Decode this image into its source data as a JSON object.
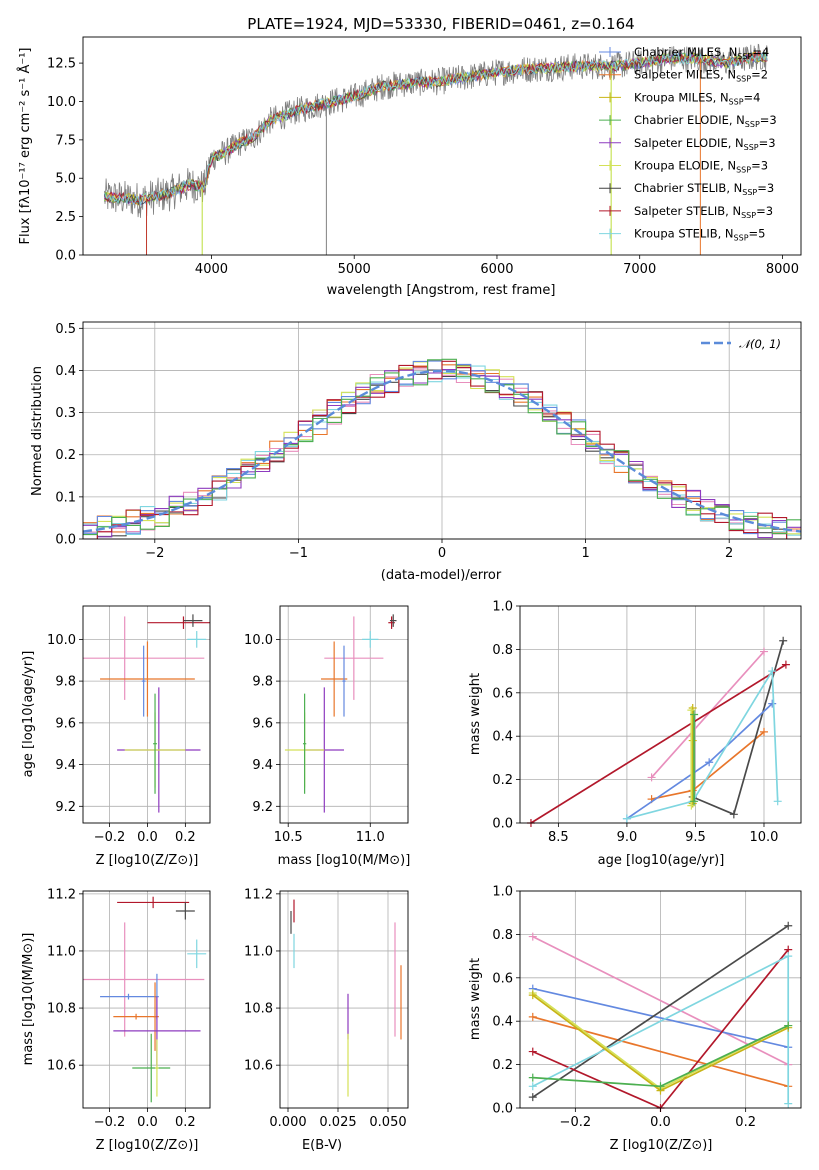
{
  "chart_data": [
    {
      "id": "spectrum",
      "type": "line",
      "title": "PLATE=1924, MJD=53330, FIBERID=0461, z=0.164",
      "xlabel": "wavelength [Angstrom, rest frame]",
      "ylabel": "Flux [fλ10⁻¹⁷ erg cm⁻² s⁻¹ Å⁻¹]",
      "xlim": [
        3100,
        8130
      ],
      "ylim": [
        0,
        14.2
      ],
      "xticks": [
        4000,
        5000,
        6000,
        7000,
        8000
      ],
      "yticks": [
        0.0,
        2.5,
        5.0,
        7.5,
        10.0,
        12.5
      ],
      "ytick_labels": [
        "0.0",
        "2.5",
        "5.0",
        "7.5",
        "10.0",
        "12.5"
      ],
      "continuum": {
        "x": [
          3250,
          3500,
          3700,
          3850,
          3950,
          4000,
          4100,
          4200,
          4300,
          4400,
          4600,
          4800,
          5000,
          5200,
          5400,
          5600,
          5800,
          6000,
          6200,
          6400,
          6600,
          6800,
          7000,
          7200,
          7400,
          7600,
          7800,
          7900
        ],
        "y": [
          3.8,
          3.6,
          4.0,
          4.6,
          4.4,
          6.3,
          6.7,
          7.3,
          7.7,
          8.7,
          9.4,
          9.9,
          10.3,
          11.0,
          11.2,
          11.3,
          11.6,
          11.9,
          12.1,
          12.2,
          12.3,
          12.3,
          12.5,
          12.8,
          12.8,
          12.5,
          12.9,
          12.9
        ]
      },
      "vlines": [
        {
          "x": 3545,
          "color": "#c0392b"
        },
        {
          "x": 3935,
          "color": "#bcdd3a"
        },
        {
          "x": 4805,
          "color": "#808080"
        },
        {
          "x": 6800,
          "color": "#bcdd3a"
        },
        {
          "x": 7425,
          "color": "#e8762b"
        }
      ],
      "legend_position": "upper right",
      "series": [
        {
          "name": "Chabrier MILES, N",
          "sub": "SSP",
          "value": "=4",
          "color": "#6389e0"
        },
        {
          "name": "Salpeter MILES, N",
          "sub": "SSP",
          "value": "=2",
          "color": "#e8762b"
        },
        {
          "name": "Kroupa MILES, N",
          "sub": "SSP",
          "value": "=4",
          "color": "#c8b415"
        },
        {
          "name": "Chabrier ELODIE, N",
          "sub": "SSP",
          "value": "=3",
          "color": "#4caf50"
        },
        {
          "name": "Salpeter ELODIE, N",
          "sub": "SSP",
          "value": "=3",
          "color": "#8e3bbf"
        },
        {
          "name": "Kroupa ELODIE, N",
          "sub": "SSP",
          "value": "=3",
          "color": "#d4e157"
        },
        {
          "name": "Chabrier STELIB, N",
          "sub": "SSP",
          "value": "=3",
          "color": "#404040"
        },
        {
          "name": "Salpeter STELIB, N",
          "sub": "SSP",
          "value": "=3",
          "color": "#b2182b"
        },
        {
          "name": "Kroupa STELIB, N",
          "sub": "SSP",
          "value": "=5",
          "color": "#7fd6e0"
        }
      ]
    },
    {
      "id": "residuals",
      "type": "line",
      "xlabel": "(data-model)/error",
      "ylabel": "Normed distribution",
      "xlim": [
        -2.5,
        2.5
      ],
      "ylim": [
        0,
        0.515
      ],
      "xticks": [
        -2,
        -1,
        0,
        1,
        2
      ],
      "xtick_labels": [
        "−2",
        "−1",
        "0",
        "1",
        "2"
      ],
      "yticks": [
        0.0,
        0.1,
        0.2,
        0.3,
        0.4,
        0.5
      ],
      "ytick_labels": [
        "0.0",
        "0.1",
        "0.2",
        "0.3",
        "0.4",
        "0.5"
      ],
      "grid": true,
      "legend_position": "upper right",
      "gauss_label": "𝒩(0, 1)",
      "gauss_color": "#5b8bd9",
      "hist_bin_edges_start": -2.5,
      "hist_bin_width": 0.1,
      "hist_colors": [
        "#e8762b",
        "#4a4a4a",
        "#e88fbd",
        "#7fd6e0",
        "#d4e157",
        "#6389e0",
        "#8e3bbf",
        "#b2182b",
        "#4caf50"
      ]
    },
    {
      "id": "age_vs_Z",
      "type": "scatter",
      "xlabel": "Z [log10(Z/Z⊙)]",
      "ylabel": "age  [log10(age/yr)]",
      "xlim": [
        -0.34,
        0.33
      ],
      "ylim": [
        9.12,
        10.16
      ],
      "xticks": [
        -0.2,
        0.0,
        0.2
      ],
      "xtick_labels": [
        "−0.2",
        "0.0",
        "0.2"
      ],
      "yticks": [
        9.2,
        9.4,
        9.6,
        9.8,
        10.0
      ],
      "ytick_labels": [
        "9.2",
        "9.4",
        "9.6",
        "9.8",
        "10.0"
      ],
      "grid": true,
      "points": [
        {
          "x": 0.19,
          "y": 10.08,
          "xerr": 0.19,
          "yerr": 0.03,
          "color": "#b2182b"
        },
        {
          "x": 0.24,
          "y": 10.09,
          "xerr": 0.05,
          "yerr": 0.03,
          "color": "#4a4a4a"
        },
        {
          "x": 0.26,
          "y": 10.0,
          "xerr": 0.05,
          "yerr": 0.04,
          "color": "#7fd6e0"
        },
        {
          "x": -0.12,
          "y": 9.91,
          "xerr": 0.42,
          "yerr": 0.2,
          "color": "#e88fbd"
        },
        {
          "x": 0.0,
          "y": 9.81,
          "xerr": 0.25,
          "yerr": 0.18,
          "color": "#e8762b"
        },
        {
          "x": -0.02,
          "y": 9.8,
          "xerr": 0.01,
          "yerr": 0.17,
          "color": "#6389e0"
        },
        {
          "x": 0.06,
          "y": 9.47,
          "xerr": 0.22,
          "yerr": 0.3,
          "color": "#8e3bbf"
        },
        {
          "x": 0.04,
          "y": 9.47,
          "xerr": 0.16,
          "yerr": 0.18,
          "color": "#d4e157"
        },
        {
          "x": 0.04,
          "y": 9.5,
          "xerr": 0.01,
          "yerr": 0.24,
          "color": "#4caf50"
        }
      ]
    },
    {
      "id": "age_vs_mass",
      "type": "scatter",
      "xlabel": "mass [log10(M/M⊙)]",
      "xlim": [
        10.45,
        11.23
      ],
      "ylim": [
        9.12,
        10.16
      ],
      "xticks": [
        10.5,
        11.0
      ],
      "xtick_labels": [
        "10.5",
        "11.0"
      ],
      "yticks": [
        9.2,
        9.4,
        9.6,
        9.8,
        10.0
      ],
      "ytick_labels": [
        "9.2",
        "9.4",
        "9.6",
        "9.8",
        "10.0"
      ],
      "grid": true,
      "points": [
        {
          "x": 11.13,
          "y": 10.08,
          "xerr": 0.02,
          "yerr": 0.03,
          "color": "#b2182b"
        },
        {
          "x": 11.14,
          "y": 10.09,
          "xerr": 0.02,
          "yerr": 0.03,
          "color": "#4a4a4a"
        },
        {
          "x": 11.0,
          "y": 10.0,
          "xerr": 0.05,
          "yerr": 0.04,
          "color": "#7fd6e0"
        },
        {
          "x": 10.9,
          "y": 9.91,
          "xerr": 0.18,
          "yerr": 0.2,
          "color": "#e88fbd"
        },
        {
          "x": 10.78,
          "y": 9.81,
          "xerr": 0.08,
          "yerr": 0.18,
          "color": "#e8762b"
        },
        {
          "x": 10.84,
          "y": 9.8,
          "xerr": 0.01,
          "yerr": 0.17,
          "color": "#6389e0"
        },
        {
          "x": 10.72,
          "y": 9.47,
          "xerr": 0.12,
          "yerr": 0.3,
          "color": "#8e3bbf"
        },
        {
          "x": 10.6,
          "y": 9.47,
          "xerr": 0.12,
          "yerr": 0.18,
          "color": "#d4e157"
        },
        {
          "x": 10.6,
          "y": 9.5,
          "xerr": 0.01,
          "yerr": 0.24,
          "color": "#4caf50"
        }
      ]
    },
    {
      "id": "weight_vs_age",
      "type": "line",
      "xlabel": "age  [log10(age/yr)]",
      "ylabel": "mass weight",
      "xlim": [
        8.22,
        10.27
      ],
      "ylim": [
        0,
        1.0
      ],
      "xticks": [
        8.5,
        9.0,
        9.5,
        10.0
      ],
      "xtick_labels": [
        "8.5",
        "9.0",
        "9.5",
        "10.0"
      ],
      "yticks": [
        0.0,
        0.2,
        0.4,
        0.6,
        0.8,
        1.0
      ],
      "ytick_labels": [
        "0.0",
        "0.2",
        "0.4",
        "0.6",
        "0.8",
        "1.0"
      ],
      "grid": true,
      "series": [
        {
          "color": "#e88fbd",
          "x": [
            9.18,
            10.0
          ],
          "y": [
            0.21,
            0.79
          ]
        },
        {
          "color": "#e8762b",
          "x": [
            9.18,
            9.48,
            10.0
          ],
          "y": [
            0.11,
            0.15,
            0.42
          ]
        },
        {
          "color": "#4a4a4a",
          "x": [
            9.48,
            9.78,
            10.14
          ],
          "y": [
            0.12,
            0.04,
            0.84
          ]
        },
        {
          "color": "#b2182b",
          "x": [
            8.3,
            10.16
          ],
          "y": [
            0.0,
            0.73
          ]
        },
        {
          "color": "#6389e0",
          "x": [
            9.0,
            9.6,
            10.06
          ],
          "y": [
            0.02,
            0.28,
            0.55
          ]
        },
        {
          "color": "#7fd6e0",
          "x": [
            9.0,
            9.48,
            10.06,
            10.1
          ],
          "y": [
            0.02,
            0.1,
            0.7,
            0.1
          ]
        },
        {
          "color": "#c8b415",
          "x": [
            9.48,
            9.48,
            9.48
          ],
          "y": [
            0.53,
            0.38,
            0.09
          ]
        },
        {
          "color": "#d4e157",
          "x": [
            9.47,
            9.47
          ],
          "y": [
            0.52,
            0.08
          ]
        },
        {
          "color": "#4caf50",
          "x": [
            9.49,
            9.49
          ],
          "y": [
            0.5,
            0.1
          ]
        }
      ]
    },
    {
      "id": "mass_vs_Z",
      "type": "scatter",
      "xlabel": "Z [log10(Z/Z⊙)]",
      "ylabel": "mass [log10(M/M⊙)]",
      "xlim": [
        -0.34,
        0.33
      ],
      "ylim": [
        10.45,
        11.21
      ],
      "xticks": [
        -0.2,
        0.0,
        0.2
      ],
      "xtick_labels": [
        "−0.2",
        "0.0",
        "0.2"
      ],
      "yticks": [
        10.6,
        10.8,
        11.0,
        11.2
      ],
      "ytick_labels": [
        "10.6",
        "10.8",
        "11.0",
        "11.2"
      ],
      "grid": true,
      "points": [
        {
          "x": 0.03,
          "y": 11.17,
          "xerr": 0.19,
          "yerr": 0.02,
          "color": "#b2182b"
        },
        {
          "x": 0.2,
          "y": 11.14,
          "xerr": 0.05,
          "yerr": 0.03,
          "color": "#4a4a4a"
        },
        {
          "x": 0.26,
          "y": 10.99,
          "xerr": 0.05,
          "yerr": 0.05,
          "color": "#7fd6e0"
        },
        {
          "x": -0.12,
          "y": 10.9,
          "xerr": 0.42,
          "yerr": 0.2,
          "color": "#e88fbd"
        },
        {
          "x": -0.1,
          "y": 10.84,
          "xerr": 0.15,
          "yerr": 0.01,
          "color": "#6389e0"
        },
        {
          "x": 0.05,
          "y": 10.84,
          "xerr": 0.01,
          "yerr": 0.08,
          "color": "#6389e0"
        },
        {
          "x": -0.06,
          "y": 10.77,
          "xerr": 0.12,
          "yerr": 0.01,
          "color": "#e8762b"
        },
        {
          "x": 0.04,
          "y": 10.77,
          "xerr": 0.01,
          "yerr": 0.12,
          "color": "#e8762b"
        },
        {
          "x": 0.05,
          "y": 10.72,
          "xerr": 0.23,
          "yerr": 0.12,
          "color": "#8e3bbf"
        },
        {
          "x": 0.02,
          "y": 10.59,
          "xerr": 0.1,
          "yerr": 0.12,
          "color": "#4caf50"
        },
        {
          "x": 0.05,
          "y": 10.59,
          "xerr": 0.01,
          "yerr": 0.1,
          "color": "#d4e157"
        }
      ]
    },
    {
      "id": "mass_vs_ebv",
      "type": "scatter",
      "xlabel": "E(B-V)",
      "xlim": [
        -0.004,
        0.06
      ],
      "ylim": [
        10.45,
        11.21
      ],
      "xticks": [
        0.0,
        0.025,
        0.05
      ],
      "xtick_labels": [
        "0.000",
        "0.025",
        "0.050"
      ],
      "yticks": [
        10.6,
        10.8,
        11.0,
        11.2
      ],
      "ytick_labels": [
        "10.6",
        "10.8",
        "11.0",
        "11.2"
      ],
      "grid": true,
      "points": [
        {
          "x": 0.003,
          "y": 11.14,
          "yerr": 0.04,
          "color": "#b2182b"
        },
        {
          "x": 0.003,
          "y": 11.0,
          "yerr": 0.06,
          "color": "#7fd6e0"
        },
        {
          "x": 0.0015,
          "y": 11.1,
          "yerr": 0.04,
          "color": "#4a4a4a"
        },
        {
          "x": 0.03,
          "y": 10.77,
          "yerr": 0.08,
          "color": "#8e3bbf"
        },
        {
          "x": 0.03,
          "y": 10.6,
          "yerr": 0.11,
          "color": "#d4e157"
        },
        {
          "x": 0.0535,
          "y": 10.9,
          "yerr": 0.2,
          "color": "#e88fbd"
        },
        {
          "x": 0.0565,
          "y": 10.82,
          "yerr": 0.13,
          "color": "#e8762b"
        }
      ]
    },
    {
      "id": "weight_vs_Z",
      "type": "line",
      "xlabel": "Z [log10(Z/Z⊙)]",
      "ylabel": "mass weight",
      "xlim": [
        -0.33,
        0.33
      ],
      "ylim": [
        0,
        1.0
      ],
      "xticks": [
        -0.2,
        0.0,
        0.2
      ],
      "xtick_labels": [
        "−0.2",
        "0.0",
        "0.2"
      ],
      "yticks": [
        0.0,
        0.2,
        0.4,
        0.6,
        0.8,
        1.0
      ],
      "ytick_labels": [
        "0.0",
        "0.2",
        "0.4",
        "0.6",
        "0.8",
        "1.0"
      ],
      "grid": true,
      "series": [
        {
          "color": "#e88fbd",
          "x": [
            -0.3,
            0.3
          ],
          "y": [
            0.79,
            0.2
          ]
        },
        {
          "color": "#6389e0",
          "x": [
            -0.3,
            0.3
          ],
          "y": [
            0.55,
            0.28
          ]
        },
        {
          "color": "#e8762b",
          "x": [
            -0.3,
            0.3
          ],
          "y": [
            0.42,
            0.1
          ]
        },
        {
          "color": "#4a4a4a",
          "x": [
            -0.3,
            0.3
          ],
          "y": [
            0.05,
            0.84
          ]
        },
        {
          "color": "#b2182b",
          "x": [
            -0.3,
            0.0,
            0.3
          ],
          "y": [
            0.26,
            0.0,
            0.73
          ]
        },
        {
          "color": "#7fd6e0",
          "x": [
            -0.3,
            0.3,
            0.3
          ],
          "y": [
            0.1,
            0.7,
            0.02
          ]
        },
        {
          "color": "#d4e157",
          "x": [
            -0.3,
            0.0,
            0.3
          ],
          "y": [
            0.53,
            0.09,
            0.38
          ]
        },
        {
          "color": "#c8b415",
          "x": [
            -0.3,
            0.0,
            0.3
          ],
          "y": [
            0.52,
            0.08,
            0.37
          ]
        },
        {
          "color": "#4caf50",
          "x": [
            -0.3,
            0.0,
            0.3
          ],
          "y": [
            0.14,
            0.1,
            0.38
          ]
        }
      ]
    }
  ]
}
